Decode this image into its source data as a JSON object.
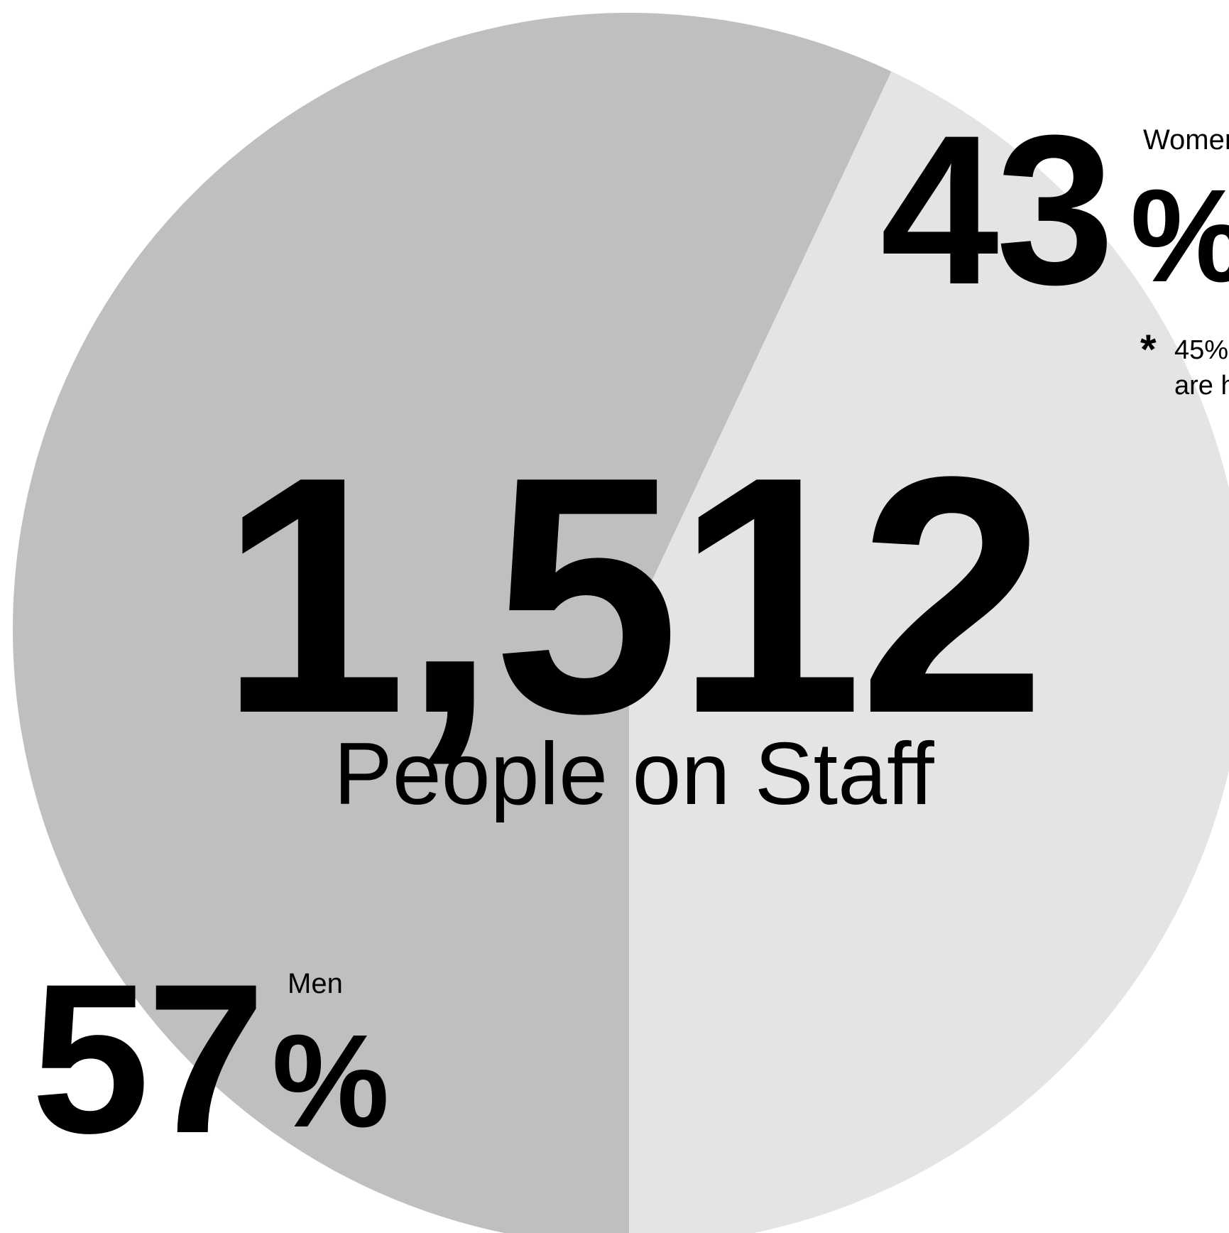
{
  "chart_data": {
    "type": "pie",
    "title": "",
    "categories": [
      "Men",
      "Women"
    ],
    "values": [
      57,
      43
    ],
    "unit": "%",
    "colors": [
      "#bfbfbf",
      "#e4e4e4"
    ],
    "start_direction": "bottom",
    "legend": "none"
  },
  "total": {
    "value": "1,512",
    "label": "People on Staff"
  },
  "women": {
    "label": "Women",
    "value": "43",
    "percent_sign": "%"
  },
  "men": {
    "label": "Men",
    "value": "57",
    "percent_sign": "%"
  },
  "footnote": {
    "star": "*",
    "line1": "45%",
    "line2": "are h"
  }
}
